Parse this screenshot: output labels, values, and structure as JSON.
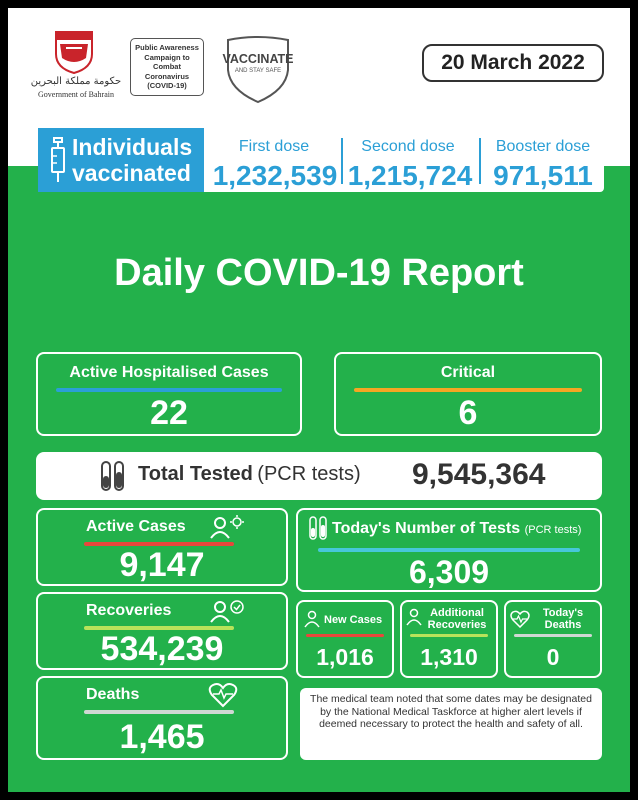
{
  "header": {
    "gov_logo_text": "حكومة مملكة البحرين",
    "gov_caption": "Government of Bahrain",
    "campaign_text": "Public Awareness Campaign to Combat Coronavirus (COVID-19)",
    "vaccinate_title": "VACCINATE",
    "vaccinate_sub": "AND STAY SAFE",
    "date": "20 March 2022"
  },
  "vaccination": {
    "label_line1": "Individuals",
    "label_line2": "vaccinated",
    "first_dose_label": "First dose",
    "first_dose_value": "1,232,539",
    "second_dose_label": "Second dose",
    "second_dose_value": "1,215,724",
    "booster_label": "Booster dose",
    "booster_value": "971,511"
  },
  "report_title": "Daily COVID-19 Report",
  "hospital": {
    "label": "Active Hospitalised Cases",
    "value": "22"
  },
  "critical": {
    "label": "Critical",
    "value": "6"
  },
  "total_tested": {
    "label": "Total Tested",
    "sub": "(PCR tests)",
    "value": "9,545,364"
  },
  "active_cases": {
    "label": "Active Cases",
    "value": "9,147"
  },
  "recoveries": {
    "label": "Recoveries",
    "value": "534,239"
  },
  "deaths": {
    "label": "Deaths",
    "value": "1,465"
  },
  "tests_today": {
    "label": "Today's Number of Tests",
    "sub": "(PCR tests)",
    "value": "6,309"
  },
  "new_cases": {
    "label": "New Cases",
    "value": "1,016"
  },
  "additional_recoveries": {
    "label_line1": "Additional",
    "label_line2": "Recoveries",
    "value": "1,310"
  },
  "todays_deaths": {
    "label_line1": "Today's",
    "label_line2": "Deaths",
    "value": "0"
  },
  "note": "The medical team noted that some dates may be designated by the National Medical Taskforce at higher alert levels if deemed necessary to protect the health and safety of all.",
  "colors": {
    "green": "#23b14b",
    "blue": "#2b9fd6",
    "orange": "#f5a623",
    "red": "#e8473b",
    "lime": "#b9e35a",
    "cyan": "#47c7d9",
    "grey": "#cfd8d3"
  }
}
